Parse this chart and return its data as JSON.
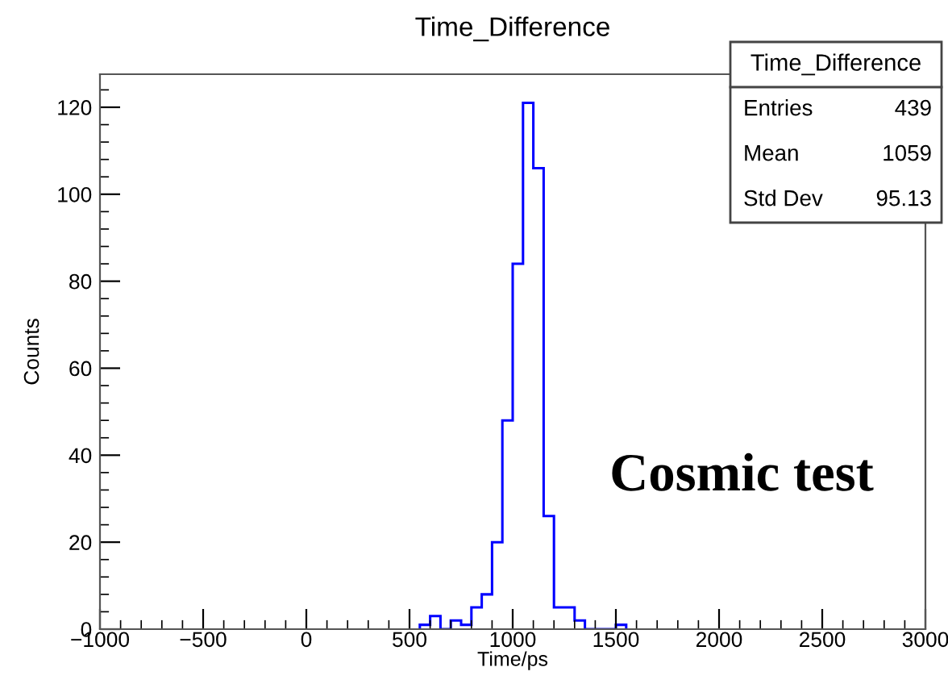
{
  "chart_data": {
    "type": "histogram",
    "title": "Time_Difference",
    "xlabel": "Time/ps",
    "ylabel": "Counts",
    "bins": [
      550,
      600,
      650,
      700,
      750,
      800,
      850,
      900,
      950,
      1000,
      1050,
      1100,
      1150,
      1200,
      1250,
      1300,
      1350,
      1400,
      1450,
      1500,
      1550
    ],
    "values": [
      1,
      3,
      0,
      2,
      1,
      5,
      8,
      20,
      48,
      84,
      121,
      106,
      26,
      5,
      5,
      2,
      0,
      0,
      0,
      1
    ],
    "color": "#0000ff",
    "xlim": [
      -1000,
      3000
    ],
    "xticks": [
      {
        "value": -1000,
        "label": "−1000"
      },
      {
        "value": -500,
        "label": "−500"
      },
      0,
      500,
      1000,
      1500,
      2000,
      2500,
      3000
    ],
    "ylim": [
      0,
      127.6
    ],
    "yticks": [
      0,
      20,
      40,
      60,
      80,
      100,
      120
    ],
    "grid": false,
    "legend": false,
    "annotations": [
      "Time_Difference",
      "Entries 439",
      "Mean 1059",
      "Std Dev 95.13",
      "Cosmic test"
    ]
  }
}
